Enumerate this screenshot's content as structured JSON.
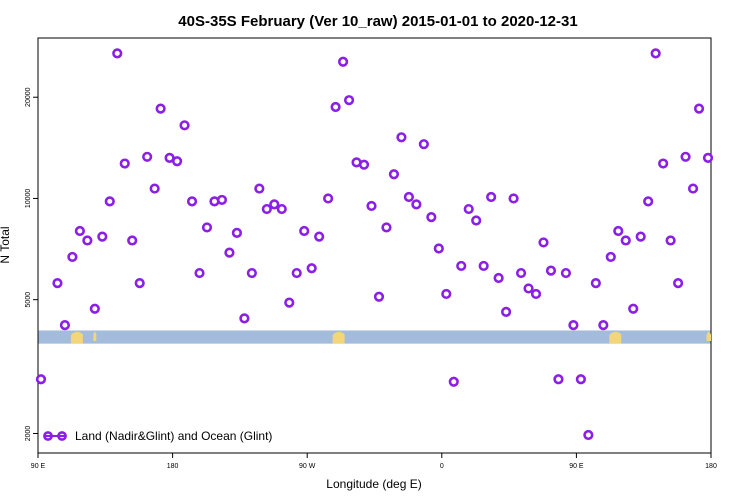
{
  "chart_data": {
    "type": "scatter",
    "title": "40S-35S February (Ver 10_raw)   2015-01-01 to 2020-12-31",
    "xlabel": "Longitude (deg E)",
    "ylabel": "N Total",
    "y_scale": "log",
    "xlim": [
      90,
      540
    ],
    "ylim": [
      1750,
      30000
    ],
    "x_ticks": [
      {
        "value": 90,
        "label": "90 E"
      },
      {
        "value": 180,
        "label": "180"
      },
      {
        "value": 270,
        "label": "90 W"
      },
      {
        "value": 360,
        "label": "0"
      },
      {
        "value": 450,
        "label": "90 E"
      },
      {
        "value": 540,
        "label": "180"
      }
    ],
    "y_ticks": [
      {
        "value": 2000,
        "label": "2000"
      },
      {
        "value": 5000,
        "label": "5000"
      },
      {
        "value": 10000,
        "label": "10000"
      },
      {
        "value": 20000,
        "label": "20000"
      }
    ],
    "map_band": {
      "y_from": 3700,
      "y_to": 4050,
      "ocean_color": "#a4bcdc",
      "land_color": "#f4d67a"
    },
    "legend": {
      "label": "Land (Nadir&Glint) and Ocean (Glint)",
      "position": "bottom-left"
    },
    "series": [
      {
        "name": "Land (Nadir&Glint) and Ocean (Glint)",
        "color": "#8b1fe6",
        "points": [
          [
            92,
            2900
          ],
          [
            103,
            5600
          ],
          [
            108,
            4200
          ],
          [
            113,
            6700
          ],
          [
            118,
            8000
          ],
          [
            123,
            7500
          ],
          [
            128,
            4700
          ],
          [
            133,
            7700
          ],
          [
            138,
            9800
          ],
          [
            143,
            27000
          ],
          [
            148,
            12700
          ],
          [
            153,
            7500
          ],
          [
            158,
            5600
          ],
          [
            163,
            13300
          ],
          [
            168,
            10700
          ],
          [
            172,
            18500
          ],
          [
            178,
            13200
          ],
          [
            183,
            12900
          ],
          [
            188,
            16500
          ],
          [
            193,
            9800
          ],
          [
            198,
            6000
          ],
          [
            203,
            8200
          ],
          [
            208,
            9800
          ],
          [
            213,
            9900
          ],
          [
            218,
            6900
          ],
          [
            223,
            7900
          ],
          [
            228,
            4400
          ],
          [
            233,
            6000
          ],
          [
            238,
            10700
          ],
          [
            243,
            9300
          ],
          [
            248,
            9600
          ],
          [
            253,
            9300
          ],
          [
            258,
            4900
          ],
          [
            263,
            6000
          ],
          [
            268,
            8000
          ],
          [
            273,
            6200
          ],
          [
            278,
            7700
          ],
          [
            284,
            10000
          ],
          [
            289,
            18700
          ],
          [
            294,
            25500
          ],
          [
            298,
            19600
          ],
          [
            303,
            12800
          ],
          [
            308,
            12600
          ],
          [
            313,
            9500
          ],
          [
            318,
            5100
          ],
          [
            323,
            8200
          ],
          [
            328,
            11800
          ],
          [
            333,
            15200
          ],
          [
            338,
            10100
          ],
          [
            343,
            9600
          ],
          [
            348,
            14500
          ],
          [
            353,
            8800
          ],
          [
            358,
            7100
          ],
          [
            363,
            5200
          ],
          [
            368,
            2850
          ],
          [
            373,
            6300
          ],
          [
            378,
            9300
          ],
          [
            383,
            8600
          ],
          [
            388,
            6300
          ],
          [
            393,
            10100
          ],
          [
            398,
            5800
          ],
          [
            403,
            4600
          ],
          [
            408,
            10000
          ],
          [
            413,
            6000
          ],
          [
            418,
            5400
          ],
          [
            423,
            5200
          ],
          [
            428,
            7400
          ],
          [
            433,
            6100
          ],
          [
            438,
            2900
          ],
          [
            443,
            6000
          ],
          [
            448,
            4200
          ],
          [
            453,
            2900
          ],
          [
            458,
            1980
          ],
          [
            463,
            5600
          ],
          [
            468,
            4200
          ],
          [
            473,
            6700
          ],
          [
            478,
            8000
          ],
          [
            483,
            7500
          ],
          [
            488,
            4700
          ],
          [
            493,
            7700
          ],
          [
            498,
            9800
          ],
          [
            503,
            27000
          ],
          [
            508,
            12700
          ],
          [
            513,
            7500
          ],
          [
            518,
            5600
          ],
          [
            523,
            13300
          ],
          [
            528,
            10700
          ],
          [
            532,
            18500
          ],
          [
            538,
            13200
          ]
        ]
      }
    ]
  }
}
